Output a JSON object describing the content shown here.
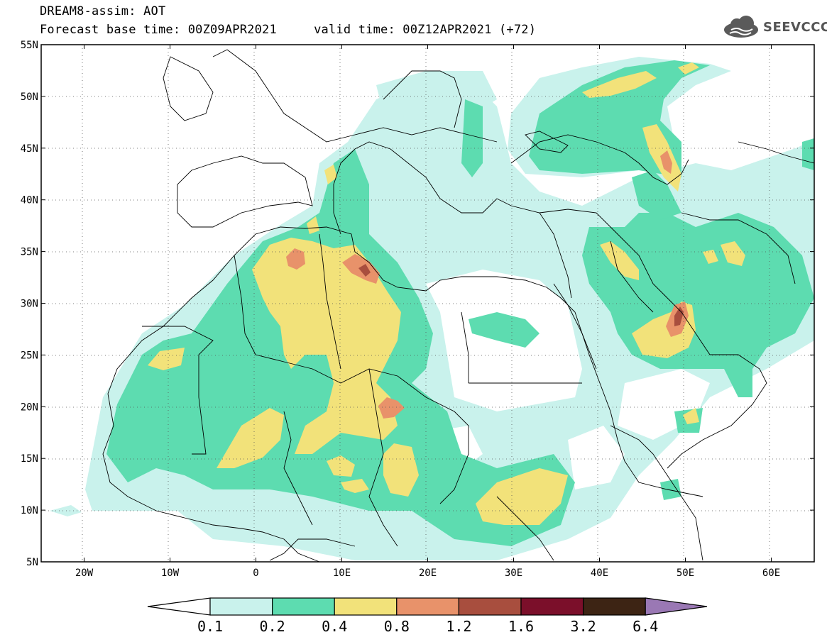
{
  "title": {
    "line1": "DREAM8-assim: AOT",
    "line2": "Forecast base time: 00Z09APR2021     valid time: 00Z12APR2021 (+72)"
  },
  "logo": {
    "icon": "cloud-icon",
    "text": "SEEVCCC"
  },
  "map": {
    "lat_labels": [
      "55N",
      "50N",
      "45N",
      "40N",
      "35N",
      "30N",
      "25N",
      "20N",
      "15N",
      "10N",
      "5N"
    ],
    "lon_labels": [
      "20W",
      "10W",
      "0",
      "10E",
      "20E",
      "30E",
      "40E",
      "50E",
      "60E"
    ],
    "lat_range": [
      5,
      55
    ],
    "lon_range": [
      -25,
      65
    ],
    "grid": "dotted"
  },
  "colorbar": {
    "labels": [
      "0.1",
      "0.2",
      "0.4",
      "0.8",
      "1.2",
      "1.6",
      "3.2",
      "6.4"
    ],
    "colors": [
      "#c9f2ec",
      "#5ddcb0",
      "#f2e27a",
      "#e8926a",
      "#a84e3e",
      "#7b0f2a",
      "#3d2414",
      "#9a78b4"
    ],
    "under_color": "#ffffff"
  }
}
